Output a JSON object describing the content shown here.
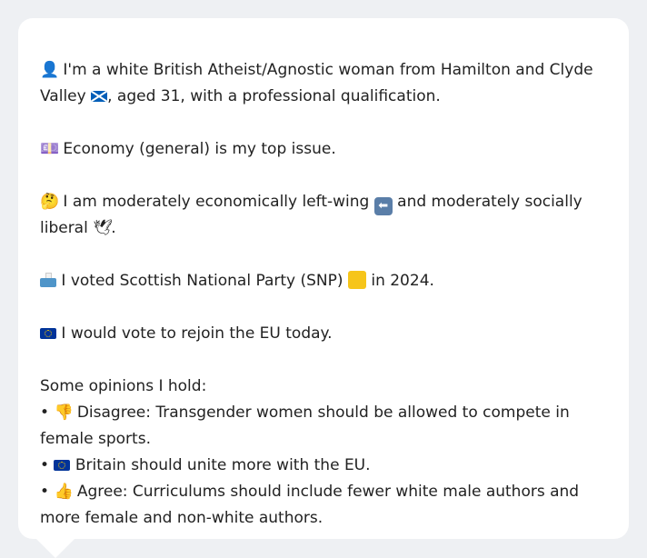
{
  "profile": {
    "identity": {
      "icon": "bust-in-silhouette-icon",
      "text_a": "I'm a white British Atheist/Agnostic woman from Hamilton and Clyde Valley",
      "flag_icon": "scotland-flag-icon",
      "text_b": ", aged 31, with a professional qualification."
    },
    "top_issue": {
      "icon": "money-icon",
      "text": "Economy (general) is my top issue."
    },
    "ideology": {
      "icon": "thinking-face-icon",
      "text_a": "I am moderately economically left-wing",
      "arrow_icon": "left-arrow-icon",
      "text_b": "and moderately socially liberal",
      "dove_icon": "dove-icon",
      "text_c": "."
    },
    "vote": {
      "icon": "ballot-box-icon",
      "text_a": "I voted Scottish National Party (SNP)",
      "party_color_icon": "yellow-square-icon",
      "party_color": "#f6c51a",
      "text_b": "in 2024."
    },
    "eu": {
      "icon": "eu-flag-icon",
      "text": "I would vote to rejoin the EU today."
    },
    "opinions": {
      "heading": "Some opinions I hold:",
      "bullet": "•",
      "items": [
        {
          "icon": "thumbs-down-icon",
          "glyph": "👎",
          "text": "Disagree: Transgender women should be allowed to compete in female sports."
        },
        {
          "icon": "eu-flag-icon",
          "glyph": "",
          "text": "Britain should unite more with the EU."
        },
        {
          "icon": "thumbs-up-icon",
          "glyph": "👍",
          "text": "Agree: Curriculums should include fewer white male authors and more female and non-white authors."
        }
      ]
    }
  },
  "glyphs": {
    "person": "👤",
    "money": "💷",
    "thinking": "🤔",
    "dove": "🕊",
    "arrow": "⬅"
  }
}
